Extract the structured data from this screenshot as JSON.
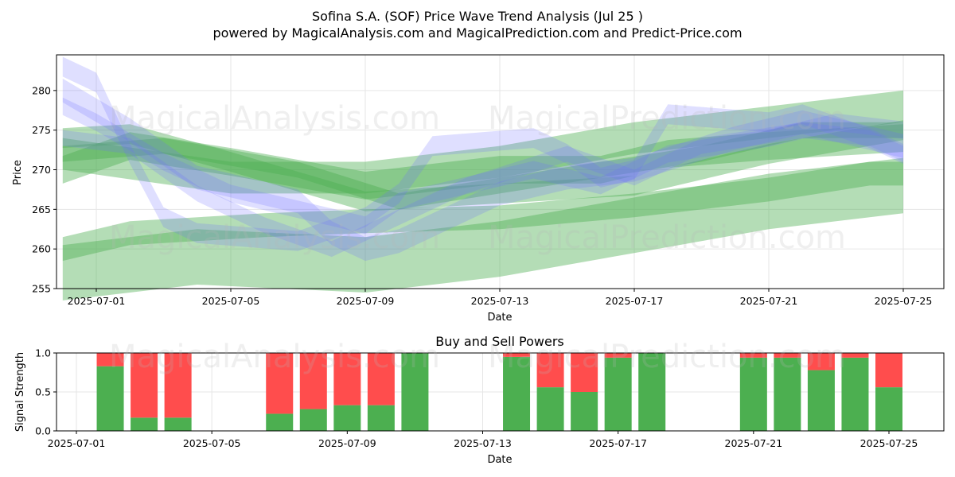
{
  "header": {
    "title": "Sofina S.A. (SOF) Price Wave Trend Analysis (Jul 25 )",
    "subtitle": "powered by MagicalAnalysis.com and MagicalPrediction.com and Predict-Price.com"
  },
  "watermarks": [
    "MagicalAnalysis.com",
    "MagicalPrediction.com"
  ],
  "colors": {
    "wave_blue": "#6f6fff",
    "wave_green": "#4caf50",
    "buy": "#4caf50",
    "sell": "#ff4d4d"
  },
  "chart_data": [
    {
      "type": "area",
      "xlabel": "Date",
      "ylabel": "Price",
      "ylim": [
        255,
        284.5
      ],
      "xlim": [
        "2025-06-30",
        "2025-07-25"
      ],
      "yticks": [
        255,
        260,
        265,
        270,
        275,
        280
      ],
      "xticks": [
        "2025-07-01",
        "2025-07-05",
        "2025-07-09",
        "2025-07-13",
        "2025-07-17",
        "2025-07-21",
        "2025-07-25"
      ],
      "grid": true,
      "blue_bands": [
        {
          "x": [
            "2025-06-30",
            "2025-07-01",
            "2025-07-02",
            "2025-07-03",
            "2025-07-04",
            "2025-07-07",
            "2025-07-09",
            "2025-07-10",
            "2025-07-11",
            "2025-07-14",
            "2025-07-15",
            "2025-07-16",
            "2025-07-17",
            "2025-07-18",
            "2025-07-21",
            "2025-07-22",
            "2025-07-24",
            "2025-07-25"
          ],
          "y": [
            283,
            281,
            272,
            264,
            262,
            261,
            264,
            267,
            273,
            274,
            272,
            269,
            270,
            277,
            276,
            277,
            274,
            272
          ],
          "width": 2.5
        },
        {
          "x": [
            "2025-06-30",
            "2025-07-02",
            "2025-07-04",
            "2025-07-07",
            "2025-07-08",
            "2025-07-09",
            "2025-07-10",
            "2025-07-13",
            "2025-07-15",
            "2025-07-17",
            "2025-07-20",
            "2025-07-22",
            "2025-07-25"
          ],
          "y": [
            280,
            275,
            269,
            266,
            262,
            260,
            261,
            267,
            269,
            270,
            274,
            276,
            273
          ],
          "width": 3
        },
        {
          "x": [
            "2025-06-30",
            "2025-07-01",
            "2025-07-03",
            "2025-07-05",
            "2025-07-08",
            "2025-07-09",
            "2025-07-10",
            "2025-07-12",
            "2025-07-14",
            "2025-07-16",
            "2025-07-18",
            "2025-07-21",
            "2025-07-23",
            "2025-07-25"
          ],
          "y": [
            278,
            276,
            271,
            267,
            264,
            263,
            266,
            268,
            270,
            268,
            272,
            274,
            276,
            275
          ],
          "width": 2.2
        },
        {
          "x": [
            "2025-06-30",
            "2025-07-02",
            "2025-07-04",
            "2025-07-06",
            "2025-07-08",
            "2025-07-10",
            "2025-07-12",
            "2025-07-15",
            "2025-07-17",
            "2025-07-19",
            "2025-07-22",
            "2025-07-24",
            "2025-07-25"
          ],
          "y": [
            274,
            273,
            267,
            263,
            260,
            264,
            268,
            272,
            269,
            273,
            275,
            274,
            272
          ],
          "width": 2
        }
      ],
      "green_bands": [
        {
          "x": [
            "2025-06-30",
            "2025-07-02",
            "2025-07-06",
            "2025-07-09",
            "2025-07-13",
            "2025-07-17",
            "2025-07-21",
            "2025-07-24",
            "2025-07-25"
          ],
          "y": [
            260,
            262,
            263,
            263.5,
            264,
            265.5,
            267.5,
            269.5,
            269.5
          ],
          "width": 3
        },
        {
          "x": [
            "2025-06-30",
            "2025-07-04",
            "2025-07-09",
            "2025-07-13",
            "2025-07-17",
            "2025-07-21",
            "2025-07-25"
          ],
          "y": [
            257,
            259,
            258,
            260,
            263,
            266,
            268
          ],
          "width": 7
        },
        {
          "x": [
            "2025-06-30",
            "2025-07-02",
            "2025-07-05",
            "2025-07-09",
            "2025-07-11",
            "2025-07-13",
            "2025-07-16",
            "2025-07-18",
            "2025-07-21",
            "2025-07-25"
          ],
          "y": [
            270,
            273,
            271,
            268,
            269,
            270,
            270,
            272,
            273,
            274
          ],
          "width": 3.5
        },
        {
          "x": [
            "2025-06-30",
            "2025-07-02",
            "2025-07-05",
            "2025-07-09",
            "2025-07-13",
            "2025-07-17",
            "2025-07-21",
            "2025-07-25"
          ],
          "y": [
            274,
            274.5,
            271,
            266,
            267,
            268,
            272,
            275
          ],
          "width": 2.5
        },
        {
          "x": [
            "2025-06-30",
            "2025-07-03",
            "2025-07-07",
            "2025-07-10",
            "2025-07-13",
            "2025-07-16",
            "2025-07-19",
            "2025-07-22",
            "2025-07-25"
          ],
          "y": [
            272,
            273,
            270,
            266,
            268,
            270,
            272,
            275,
            275
          ],
          "width": 2
        },
        {
          "x": [
            "2025-06-30",
            "2025-07-05",
            "2025-07-09",
            "2025-07-13",
            "2025-07-17",
            "2025-07-21",
            "2025-07-25"
          ],
          "y": [
            272,
            269,
            269,
            271,
            274,
            276,
            278
          ],
          "width": 4
        }
      ]
    },
    {
      "type": "bar",
      "title": "Buy and Sell Powers",
      "xlabel": "Date",
      "ylabel": "Signal Strength",
      "ylim": [
        0,
        1
      ],
      "yticks": [
        "0.0",
        "0.5",
        "1.0"
      ],
      "xticks": [
        "2025-07-01",
        "2025-07-05",
        "2025-07-09",
        "2025-07-13",
        "2025-07-17",
        "2025-07-21",
        "2025-07-25"
      ],
      "categories": [
        "2025-07-02",
        "2025-07-03",
        "2025-07-04",
        "2025-07-07",
        "2025-07-08",
        "2025-07-09",
        "2025-07-10",
        "2025-07-11",
        "2025-07-14",
        "2025-07-15",
        "2025-07-16",
        "2025-07-17",
        "2025-07-18",
        "2025-07-21",
        "2025-07-22",
        "2025-07-23",
        "2025-07-24",
        "2025-07-25"
      ],
      "series": [
        {
          "name": "Buy",
          "values": [
            0.83,
            0.17,
            0.17,
            0.22,
            0.28,
            0.33,
            0.33,
            1.0,
            0.95,
            0.56,
            0.5,
            0.94,
            1.0,
            0.94,
            0.94,
            0.78,
            0.94,
            0.56
          ]
        },
        {
          "name": "Sell",
          "values": [
            0.17,
            0.83,
            0.83,
            0.78,
            0.72,
            0.67,
            0.67,
            0.0,
            0.05,
            0.44,
            0.5,
            0.06,
            0.0,
            0.06,
            0.06,
            0.22,
            0.06,
            0.44
          ]
        }
      ]
    }
  ]
}
